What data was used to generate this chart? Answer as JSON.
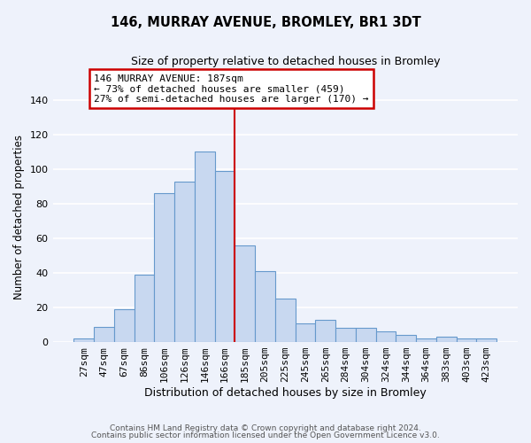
{
  "title": "146, MURRAY AVENUE, BROMLEY, BR1 3DT",
  "subtitle": "Size of property relative to detached houses in Bromley",
  "xlabel": "Distribution of detached houses by size in Bromley",
  "ylabel": "Number of detached properties",
  "bar_labels": [
    "27sqm",
    "47sqm",
    "67sqm",
    "86sqm",
    "106sqm",
    "126sqm",
    "146sqm",
    "166sqm",
    "185sqm",
    "205sqm",
    "225sqm",
    "245sqm",
    "265sqm",
    "284sqm",
    "304sqm",
    "324sqm",
    "344sqm",
    "364sqm",
    "383sqm",
    "403sqm",
    "423sqm"
  ],
  "bar_values": [
    2,
    9,
    19,
    39,
    86,
    93,
    110,
    99,
    56,
    41,
    25,
    11,
    13,
    8,
    8,
    6,
    4,
    2,
    3,
    2,
    2
  ],
  "bar_color": "#c8d8f0",
  "bar_edge_color": "#6699cc",
  "vline_color": "#cc0000",
  "ylim": [
    0,
    145
  ],
  "yticks": [
    0,
    20,
    40,
    60,
    80,
    100,
    120,
    140
  ],
  "annotation_title": "146 MURRAY AVENUE: 187sqm",
  "annotation_line1": "← 73% of detached houses are smaller (459)",
  "annotation_line2": "27% of semi-detached houses are larger (170) →",
  "annotation_box_color": "#cc0000",
  "footer1": "Contains HM Land Registry data © Crown copyright and database right 2024.",
  "footer2": "Contains public sector information licensed under the Open Government Licence v3.0.",
  "background_color": "#eef2fb",
  "grid_color": "#ffffff"
}
